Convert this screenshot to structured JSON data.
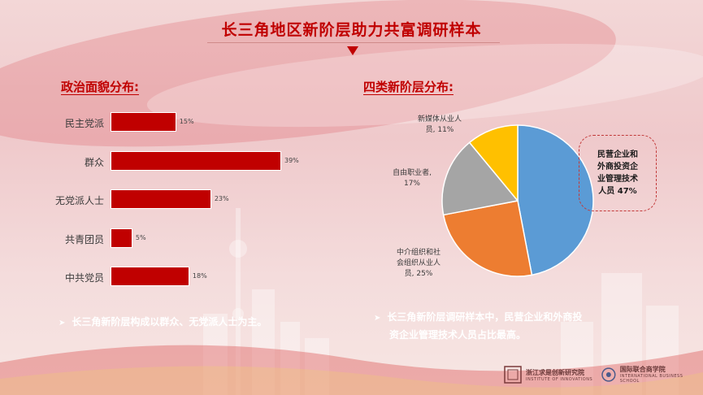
{
  "title": "长三角地区新阶层助力共富调研样本",
  "left": {
    "section_title": "政治面貌分布:",
    "bullet": "长三角新阶层构成以群众、无党派人士为主。"
  },
  "right": {
    "section_title": "四类新阶层分布:",
    "bullet_line1": "长三角新阶层调研样本中，民营企业和外商投",
    "bullet_line2": "资企业管理技术人员占比最高。"
  },
  "pie_labels": {
    "media": [
      "新媒体从业人",
      "员, 11%"
    ],
    "freelance": [
      "自由职业者,",
      "17%"
    ],
    "agency": [
      "中介组织和社",
      "会组织从业人",
      "员, 25%"
    ],
    "callout": [
      "民营企业和",
      "外商投资企",
      "业管理技术",
      "人员 47%"
    ]
  },
  "chart_data": [
    {
      "type": "bar",
      "orientation": "horizontal",
      "title": "政治面貌分布:",
      "categories": [
        "民主党派",
        "群众",
        "无党派人士",
        "共青团员",
        "中共党员"
      ],
      "values": [
        15,
        39,
        23,
        5,
        18
      ],
      "value_labels": [
        "15%",
        "39%",
        "23%",
        "5%",
        "18%"
      ],
      "color": "#c00000",
      "xlim": [
        0,
        40
      ],
      "grid": false
    },
    {
      "type": "pie",
      "title": "四类新阶层分布:",
      "slices": [
        {
          "label": "民营企业和外商投资企业管理技术人员",
          "value": 47,
          "color": "#5b9bd5"
        },
        {
          "label": "中介组织和社会组织从业人员",
          "value": 25,
          "color": "#ed7d31"
        },
        {
          "label": "自由职业者",
          "value": 17,
          "color": "#a5a5a5"
        },
        {
          "label": "新媒体从业人员",
          "value": 11,
          "color": "#ffc000"
        }
      ]
    }
  ],
  "logos": {
    "zju_name": "浙江求是创新研究院",
    "zju_sub": "INSTITUTE OF INNOVATIONS",
    "ibs_name": "国际联合商学院",
    "ibs_sub": "INTERNATIONAL BUSINESS SCHOOL"
  },
  "colors": {
    "accent": "#c00000",
    "bar": "#c00000"
  }
}
